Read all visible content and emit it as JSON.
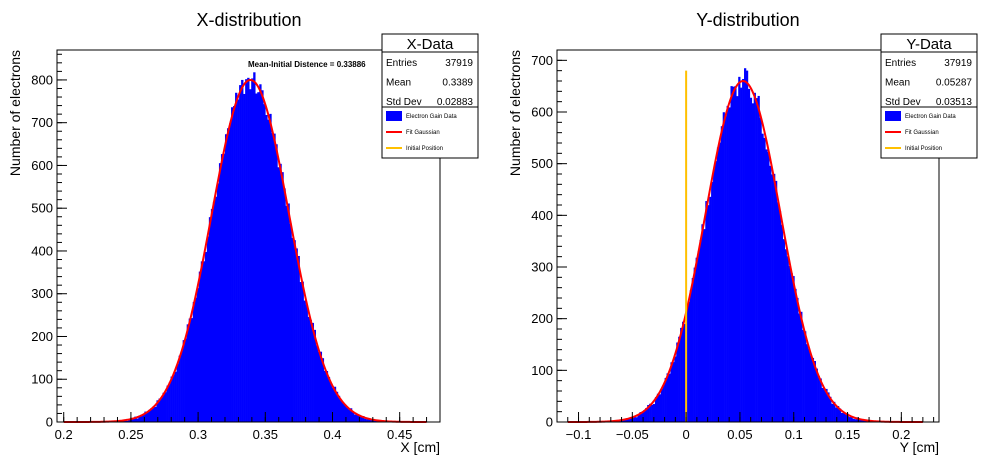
{
  "chart_data": [
    {
      "type": "bar",
      "title": "X-distribution",
      "xlabel": "X [cm]",
      "ylabel": "Number of electrons",
      "xlim": [
        0.195,
        0.48
      ],
      "ylim": [
        0,
        870
      ],
      "xticks": [
        0.2,
        0.25,
        0.3,
        0.35,
        0.4,
        0.45
      ],
      "xtick_labels": [
        "0.2",
        "0.25",
        "0.3",
        "0.35",
        "0.4",
        "0.45"
      ],
      "yticks": [
        0,
        100,
        200,
        300,
        400,
        500,
        600,
        700,
        800
      ],
      "ytick_labels": [
        "0",
        "100",
        "200",
        "300",
        "400",
        "500",
        "600",
        "700",
        "800"
      ],
      "histogram": {
        "name": "Electron Gain Data",
        "color": "#0000ff",
        "bin_width": 0.0015,
        "x_start": 0.2,
        "x_end": 0.47,
        "amplitude": 800,
        "mean": 0.3389,
        "sigma": 0.02883,
        "noise": 28
      },
      "fit": {
        "name": "Fit Gaussian",
        "color": "#ff0000",
        "amplitude": 800,
        "mean": 0.3389,
        "sigma": 0.02883
      },
      "initial_position": null,
      "annotation": "Mean-Initial Distence = 0.33886",
      "stats": {
        "title": "X-Data",
        "rows": [
          {
            "label": "Entries",
            "value": "37919"
          },
          {
            "label": "Mean",
            "value": "0.3389"
          },
          {
            "label": "Std Dev",
            "value": "0.02883"
          }
        ]
      },
      "legend": [
        {
          "label": "Electron Gain Data",
          "kind": "box",
          "color": "#0000ff"
        },
        {
          "label": "Fit Gaussian",
          "kind": "line",
          "color": "#ff0000"
        },
        {
          "label": "Initial Position",
          "kind": "line",
          "color": "#ffc000"
        }
      ]
    },
    {
      "type": "bar",
      "title": "Y-distribution",
      "xlabel": "Y [cm]",
      "ylabel": "Number of electrons",
      "xlim": [
        -0.12,
        0.235
      ],
      "ylim": [
        0,
        720
      ],
      "xticks": [
        -0.1,
        -0.05,
        0,
        0.05,
        0.1,
        0.15,
        0.2
      ],
      "xtick_labels": [
        "−0.1",
        "−0.05",
        "0",
        "0.05",
        "0.1",
        "0.15",
        "0.2"
      ],
      "yticks": [
        0,
        100,
        200,
        300,
        400,
        500,
        600,
        700
      ],
      "ytick_labels": [
        "0",
        "100",
        "200",
        "300",
        "400",
        "500",
        "600",
        "700"
      ],
      "histogram": {
        "name": "Electron Gain Data",
        "color": "#0000ff",
        "bin_width": 0.0018,
        "x_start": -0.11,
        "x_end": 0.22,
        "amplitude": 660,
        "mean": 0.0529,
        "sigma": 0.0351,
        "noise": 26
      },
      "fit": {
        "name": "Fit Gaussian",
        "color": "#ff0000",
        "amplitude": 660,
        "mean": 0.0529,
        "sigma": 0.0351
      },
      "initial_position": {
        "x": 0,
        "y": 680,
        "color": "#ffc000"
      },
      "annotation": "",
      "stats": {
        "title": "Y-Data",
        "rows": [
          {
            "label": "Entries",
            "value": "37919"
          },
          {
            "label": "Mean",
            "value": "0.05287"
          },
          {
            "label": "Std Dev",
            "value": "0.03513"
          }
        ]
      },
      "legend": [
        {
          "label": "Electron Gain Data",
          "kind": "box",
          "color": "#0000ff"
        },
        {
          "label": "Fit Gaussian",
          "kind": "line",
          "color": "#ff0000"
        },
        {
          "label": "Initial Position",
          "kind": "line",
          "color": "#ffc000"
        }
      ]
    }
  ]
}
